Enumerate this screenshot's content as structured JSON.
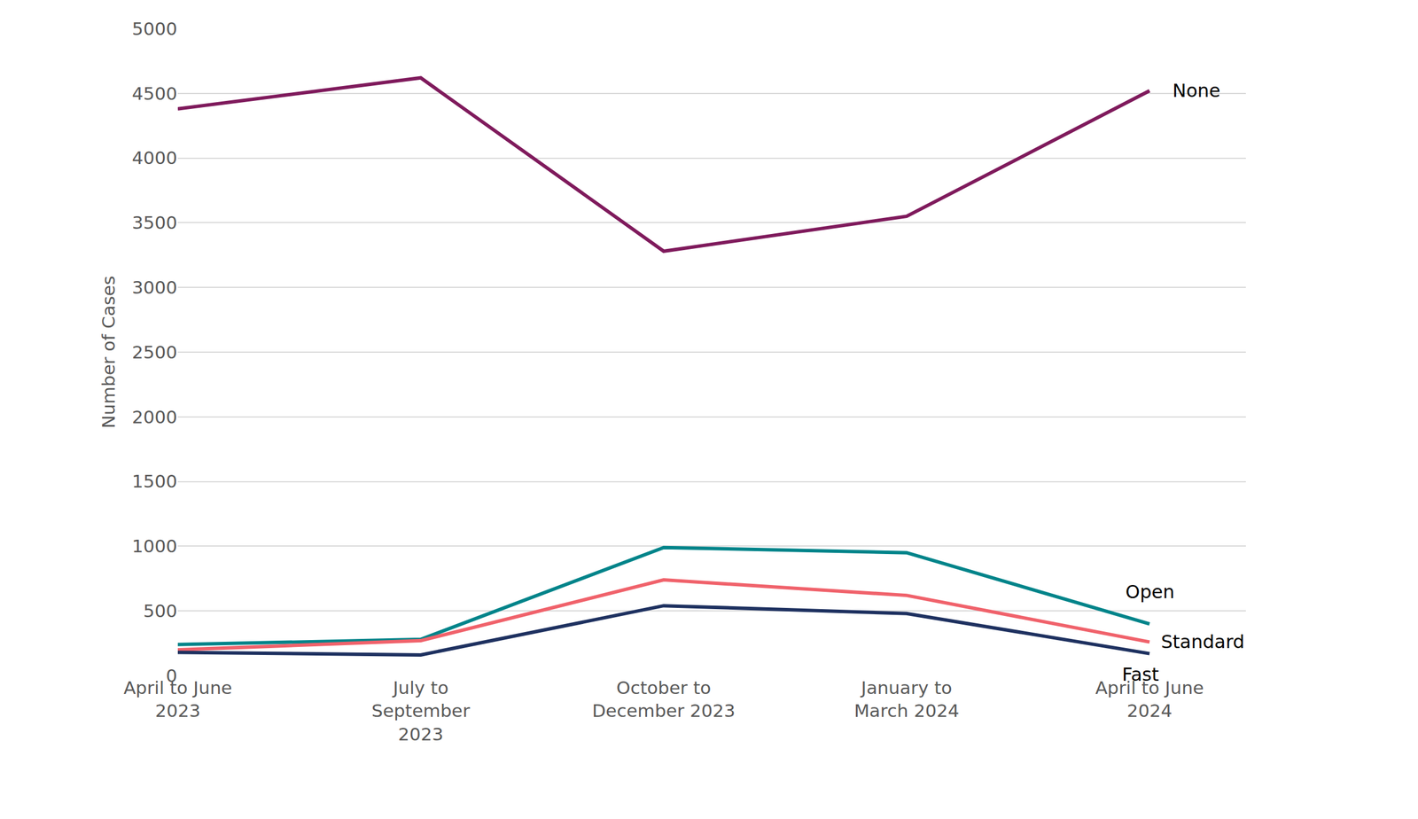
{
  "chart_data": {
    "type": "line",
    "y_label": "Number of Cases",
    "categories": [
      "April to June 2023",
      "July to September 2023",
      "October to December 2023",
      "January to March 2024",
      "April to June 2024"
    ],
    "series": [
      {
        "name": "None",
        "color": "#7f1a5c",
        "values": [
          4380,
          4620,
          3280,
          3550,
          4520
        ]
      },
      {
        "name": "Open",
        "color": "#00848a",
        "values": [
          240,
          280,
          990,
          950,
          400
        ]
      },
      {
        "name": "Standard",
        "color": "#f0626b",
        "values": [
          200,
          270,
          740,
          620,
          260
        ]
      },
      {
        "name": "Fast",
        "color": "#1e3160",
        "values": [
          180,
          160,
          540,
          480,
          170
        ]
      }
    ],
    "ylim": [
      0,
      5000
    ],
    "yticks": [
      0,
      500,
      1000,
      1500,
      2000,
      2500,
      3000,
      3500,
      4000,
      4500,
      5000
    ],
    "grid": true
  }
}
